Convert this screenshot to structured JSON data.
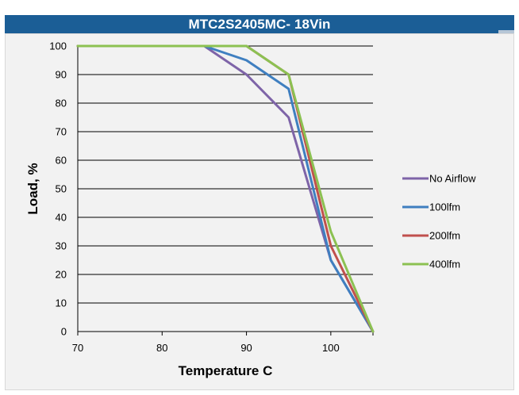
{
  "header": {
    "title": "MTC2S2405MC- 18Vin"
  },
  "chart_data": {
    "type": "line",
    "title": "MTC2S2405MC- 18Vin",
    "xlabel": "Temperature C",
    "ylabel": "Load, %",
    "xlim": [
      70,
      105
    ],
    "ylim": [
      0,
      100
    ],
    "x_ticks": [
      70,
      80,
      90,
      100
    ],
    "y_ticks": [
      0,
      10,
      20,
      30,
      40,
      50,
      60,
      70,
      80,
      90,
      100
    ],
    "grid": "horizontal",
    "legend_position": "right",
    "series": [
      {
        "name": "No Airflow",
        "color": "#7e64a8",
        "points": [
          [
            70,
            100
          ],
          [
            85,
            100
          ],
          [
            90,
            90
          ],
          [
            95,
            75
          ],
          [
            100,
            25
          ],
          [
            105,
            0
          ]
        ]
      },
      {
        "name": "100lfm",
        "color": "#3f7fc0",
        "points": [
          [
            70,
            100
          ],
          [
            85,
            100
          ],
          [
            90,
            95
          ],
          [
            95,
            85
          ],
          [
            100,
            25
          ],
          [
            105,
            0
          ]
        ]
      },
      {
        "name": "200lfm",
        "color": "#c0504d",
        "points": [
          [
            70,
            100
          ],
          [
            90,
            100
          ],
          [
            95,
            90
          ],
          [
            100,
            30
          ],
          [
            105,
            0
          ]
        ]
      },
      {
        "name": "400lfm",
        "color": "#8cc152",
        "points": [
          [
            70,
            100
          ],
          [
            90,
            100
          ],
          [
            95,
            90
          ],
          [
            100,
            35
          ],
          [
            105,
            0
          ]
        ]
      }
    ]
  }
}
